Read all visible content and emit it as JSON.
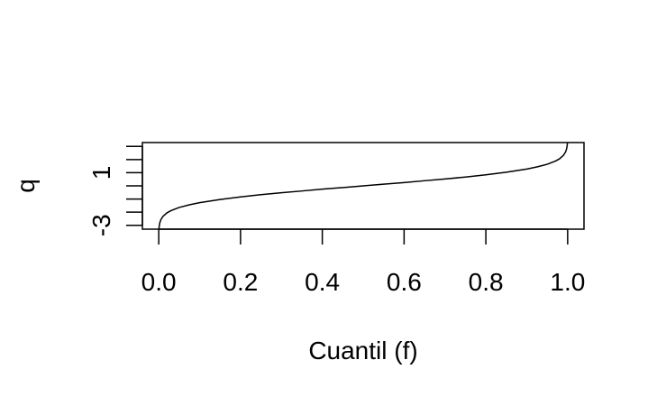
{
  "chart_data": {
    "type": "line",
    "title": "",
    "xlabel": "Cuantil (f)",
    "ylabel": "q",
    "xlim": [
      -0.04,
      1.04
    ],
    "ylim": [
      -3.29,
      3.29
    ],
    "x_ticks": [
      0.0,
      0.2,
      0.4,
      0.6,
      0.8,
      1.0
    ],
    "x_tick_labels": [
      "0.0",
      "0.2",
      "0.4",
      "0.6",
      "0.8",
      "1.0"
    ],
    "y_ticks": [
      -3,
      -2,
      -1,
      0,
      1,
      2,
      3
    ],
    "y_tick_labels": [
      "-3",
      "",
      "",
      "",
      "1",
      "",
      ""
    ],
    "grid": false,
    "legend": "none",
    "colors": {
      "line": "#000000",
      "axes": "#000000",
      "background": "#ffffff"
    },
    "series": [
      {
        "x": [
          0.0005,
          0.001,
          0.0025,
          0.005,
          0.01,
          0.02,
          0.03,
          0.05,
          0.075,
          0.1,
          0.15,
          0.2,
          0.25,
          0.3,
          0.35,
          0.4,
          0.45,
          0.5,
          0.55,
          0.6,
          0.65,
          0.7,
          0.75,
          0.8,
          0.85,
          0.9,
          0.925,
          0.95,
          0.97,
          0.98,
          0.99,
          0.995,
          0.9975,
          0.999,
          0.9995
        ],
        "y": [
          -3.29,
          -3.09,
          -2.81,
          -2.58,
          -2.33,
          -2.05,
          -1.88,
          -1.64,
          -1.44,
          -1.28,
          -1.04,
          -0.84,
          -0.67,
          -0.52,
          -0.39,
          -0.25,
          -0.13,
          0.0,
          0.13,
          0.25,
          0.39,
          0.52,
          0.67,
          0.84,
          1.04,
          1.28,
          1.44,
          1.64,
          1.88,
          2.05,
          2.33,
          2.58,
          2.81,
          3.09,
          3.29
        ]
      }
    ]
  }
}
